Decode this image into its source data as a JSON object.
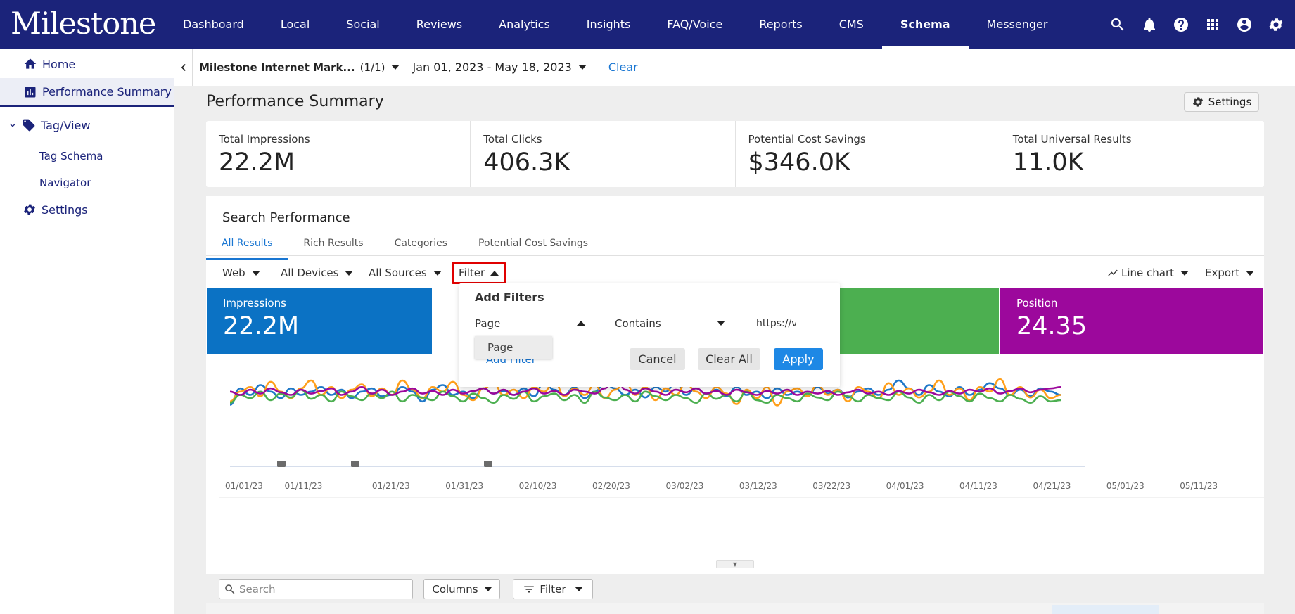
{
  "app": {
    "logo": "Milestone"
  },
  "nav": {
    "items": [
      "Dashboard",
      "Local",
      "Social",
      "Reviews",
      "Analytics",
      "Insights",
      "FAQ/Voice",
      "Reports",
      "CMS",
      "Schema",
      "Messenger"
    ],
    "active": "Schema"
  },
  "top_icons": [
    "search-icon",
    "bell-icon",
    "help-icon",
    "apps-grid-icon",
    "account-icon",
    "gear-icon"
  ],
  "sidebar": {
    "home": "Home",
    "performance_summary": "Performance Summary",
    "tag_view": "Tag/View",
    "tag_schema": "Tag Schema",
    "navigator": "Navigator",
    "settings": "Settings"
  },
  "context": {
    "account": "Milestone Internet Mark...",
    "count": "(1/1)",
    "date_range": "Jan 01, 2023 - May 18, 2023",
    "clear": "Clear"
  },
  "page": {
    "title": "Performance Summary",
    "settings_label": "Settings"
  },
  "stats": [
    {
      "label": "Total Impressions",
      "value": "22.2M"
    },
    {
      "label": "Total Clicks",
      "value": "406.3K"
    },
    {
      "label": "Potential Cost Savings",
      "value": "$346.0K"
    },
    {
      "label": "Total Universal Results",
      "value": "11.0K"
    }
  ],
  "search_performance": {
    "title": "Search Performance",
    "tabs": [
      "All Results",
      "Rich Results",
      "Categories",
      "Potential Cost Savings"
    ],
    "active_tab": "All Results",
    "toolbar": {
      "web": "Web",
      "devices": "All Devices",
      "sources": "All Sources",
      "filter": "Filter",
      "chart_type": "Line chart",
      "export": "Export"
    },
    "metrics": [
      {
        "label": "Impressions",
        "value": "22.2M",
        "color": "#0b72c4"
      },
      {
        "label": "Position",
        "value": "24.35",
        "color": "#9c089c"
      }
    ],
    "clicks_color": "#4caf50"
  },
  "filter_popup": {
    "title": "Add Filters",
    "field": "Page",
    "operator": "Contains",
    "value": "https://v",
    "dropdown_option": "Page",
    "add_filter": "Add Filter",
    "cancel": "Cancel",
    "clear_all": "Clear All",
    "apply": "Apply"
  },
  "chart_data": {
    "type": "line",
    "x_tick_labels": [
      "01/01/23",
      "01/11/23",
      "01/21/23",
      "01/31/23",
      "02/10/23",
      "02/20/23",
      "03/02/23",
      "03/12/23",
      "03/22/23",
      "04/01/23",
      "04/11/23",
      "04/21/23",
      "05/01/23",
      "05/11/23"
    ],
    "annotation_marker_dates": [
      "01/07/23",
      "01/17/23",
      "01/29/23"
    ],
    "colors": {
      "impressions": "#1f78c8",
      "clicks": "#ff9f1a",
      "ctr": "#4caf50",
      "position": "#9c089c"
    },
    "series": [
      {
        "color": "#1f78c8",
        "values": [
          0.35,
          0.6,
          0.5,
          0.65,
          0.55,
          0.45,
          0.6,
          0.5,
          0.55,
          0.62,
          0.5,
          0.58,
          0.45,
          0.55,
          0.6,
          0.48,
          0.5,
          0.62,
          0.55,
          0.4,
          0.58,
          0.65,
          0.5,
          0.55,
          0.45,
          0.6,
          0.52,
          0.56,
          0.5,
          0.6,
          0.48,
          0.7,
          0.58,
          0.5,
          0.62,
          0.45,
          0.55,
          0.68,
          0.6,
          0.5,
          0.58,
          0.46,
          0.62,
          0.55,
          0.7,
          0.5,
          0.6,
          0.52,
          0.58,
          0.48,
          0.62,
          0.5,
          0.55,
          0.45,
          0.6,
          0.5,
          0.55,
          0.48,
          0.62,
          0.52,
          0.58,
          0.46,
          0.55,
          0.6,
          0.5,
          0.58,
          0.72,
          0.6,
          0.5,
          0.65,
          0.55,
          0.48,
          0.62,
          0.5,
          0.58,
          0.68,
          0.6,
          0.5,
          0.58,
          0.48,
          0.6,
          0.55,
          0.5
        ]
      },
      {
        "color": "#ff9f1a",
        "values": [
          0.4,
          0.55,
          0.62,
          0.48,
          0.7,
          0.55,
          0.45,
          0.6,
          0.72,
          0.5,
          0.62,
          0.45,
          0.58,
          0.66,
          0.48,
          0.6,
          0.5,
          0.72,
          0.58,
          0.45,
          0.62,
          0.55,
          0.7,
          0.5,
          0.42,
          0.6,
          0.68,
          0.5,
          0.58,
          0.45,
          0.62,
          0.55,
          0.72,
          0.48,
          0.6,
          0.5,
          0.66,
          0.45,
          0.58,
          0.7,
          0.5,
          0.62,
          0.42,
          0.6,
          0.5,
          0.68,
          0.55,
          0.45,
          0.62,
          0.52,
          0.36,
          0.58,
          0.45,
          0.62,
          0.34,
          0.55,
          0.6,
          0.48,
          0.66,
          0.5,
          0.58,
          0.4,
          0.62,
          0.55,
          0.45,
          0.68,
          0.5,
          0.6,
          0.46,
          0.55,
          0.72,
          0.5,
          0.6,
          0.42,
          0.62,
          0.55,
          0.74,
          0.5,
          0.62,
          0.46,
          0.58,
          0.45,
          0.5
        ]
      },
      {
        "color": "#4caf50",
        "values": [
          0.38,
          0.5,
          0.45,
          0.55,
          0.42,
          0.52,
          0.46,
          0.58,
          0.44,
          0.5,
          0.4,
          0.55,
          0.48,
          0.42,
          0.52,
          0.45,
          0.55,
          0.4,
          0.5,
          0.46,
          0.42,
          0.55,
          0.48,
          0.4,
          0.52,
          0.45,
          0.38,
          0.5,
          0.44,
          0.55,
          0.4,
          0.48,
          0.52,
          0.42,
          0.5,
          0.38,
          0.55,
          0.46,
          0.42,
          0.5,
          0.4,
          0.55,
          0.48,
          0.42,
          0.5,
          0.45,
          0.38,
          0.52,
          0.44,
          0.5,
          0.4,
          0.55,
          0.42,
          0.38,
          0.5,
          0.45,
          0.4,
          0.52,
          0.46,
          0.42,
          0.55,
          0.48,
          0.4,
          0.5,
          0.45,
          0.42,
          0.55,
          0.46,
          0.38,
          0.5,
          0.42,
          0.55,
          0.48,
          0.4,
          0.52,
          0.45,
          0.4,
          0.5,
          0.44,
          0.38,
          0.48,
          0.4,
          0.42
        ]
      },
      {
        "color": "#9c089c",
        "values": [
          0.55,
          0.5,
          0.58,
          0.52,
          0.6,
          0.54,
          0.5,
          0.58,
          0.52,
          0.56,
          0.6,
          0.5,
          0.55,
          0.62,
          0.52,
          0.58,
          0.5,
          0.55,
          0.6,
          0.52,
          0.56,
          0.5,
          0.58,
          0.52,
          0.56,
          0.6,
          0.52,
          0.58,
          0.5,
          0.55,
          0.6,
          0.52,
          0.56,
          0.5,
          0.58,
          0.55,
          0.52,
          0.6,
          0.9,
          0.58,
          0.52,
          0.6,
          0.55,
          0.5,
          0.58,
          0.54,
          0.6,
          0.52,
          0.56,
          0.5,
          0.58,
          0.54,
          0.5,
          0.56,
          0.52,
          0.58,
          0.5,
          0.55,
          0.52,
          0.56,
          0.5,
          0.54,
          0.58,
          0.52,
          0.55,
          0.5,
          0.56,
          0.52,
          0.58,
          0.54,
          0.5,
          0.56,
          0.52,
          0.58,
          0.55,
          0.6,
          0.52,
          0.56,
          0.6,
          0.54,
          0.58,
          0.6,
          0.62
        ]
      }
    ],
    "legend": "none"
  },
  "bottom": {
    "search_placeholder": "Search",
    "columns": "Columns",
    "filter": "Filter"
  }
}
